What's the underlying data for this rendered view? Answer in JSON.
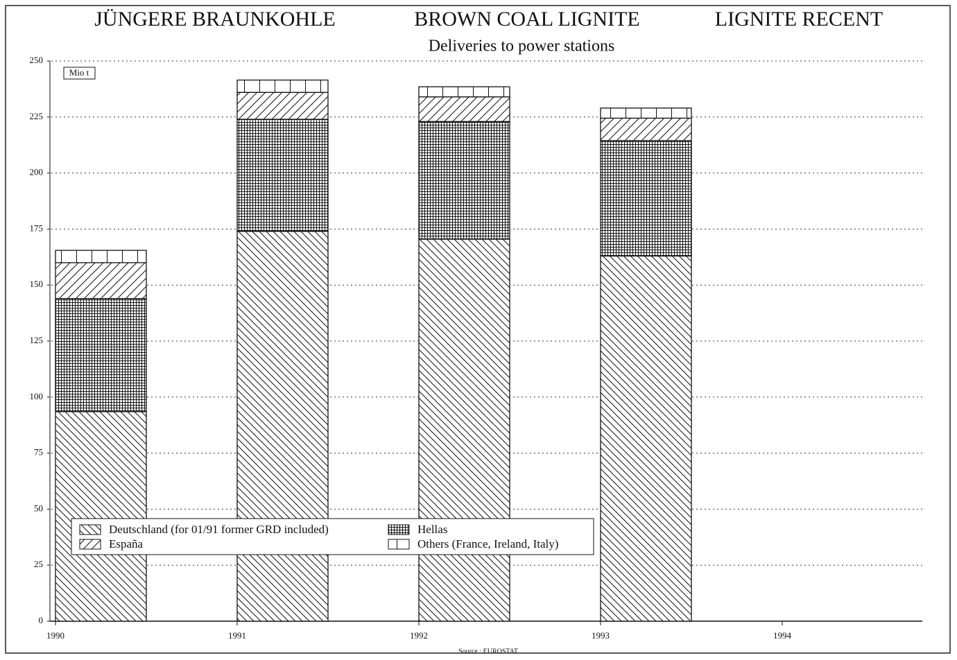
{
  "chart_data": {
    "type": "stacked_bar",
    "titles": [
      "JÜNGERE BRAUNKOHLE",
      "BROWN COAL LIGNITE",
      "LIGNITE RECENT"
    ],
    "subtitle": "Deliveries to power stations",
    "unit_label": "Mio t",
    "source": "Source : EUROSTAT",
    "categories": [
      "1990",
      "1991",
      "1992",
      "1993",
      "1994"
    ],
    "series": [
      {
        "name": "Deutschland (for 01/91 former GRD included)",
        "color": "#111111",
        "pattern": "backslash",
        "values": [
          93.5,
          174,
          170.5,
          163,
          null
        ]
      },
      {
        "name": "Hellas",
        "color": "#111111",
        "pattern": "grid",
        "values": [
          50.5,
          50,
          52.5,
          51.5,
          null
        ]
      },
      {
        "name": "España",
        "color": "#111111",
        "pattern": "slash",
        "values": [
          16,
          12,
          11,
          10,
          null
        ]
      },
      {
        "name": "Others (France, Ireland, Italy)",
        "color": "#111111",
        "pattern": "vertical",
        "values": [
          5.5,
          5.5,
          4.5,
          4.5,
          null
        ]
      }
    ],
    "ylim": [
      0,
      250
    ],
    "yticks": [
      0,
      25,
      50,
      75,
      100,
      125,
      150,
      175,
      200,
      225,
      250
    ],
    "grid": true,
    "legend": "bottom-left"
  }
}
